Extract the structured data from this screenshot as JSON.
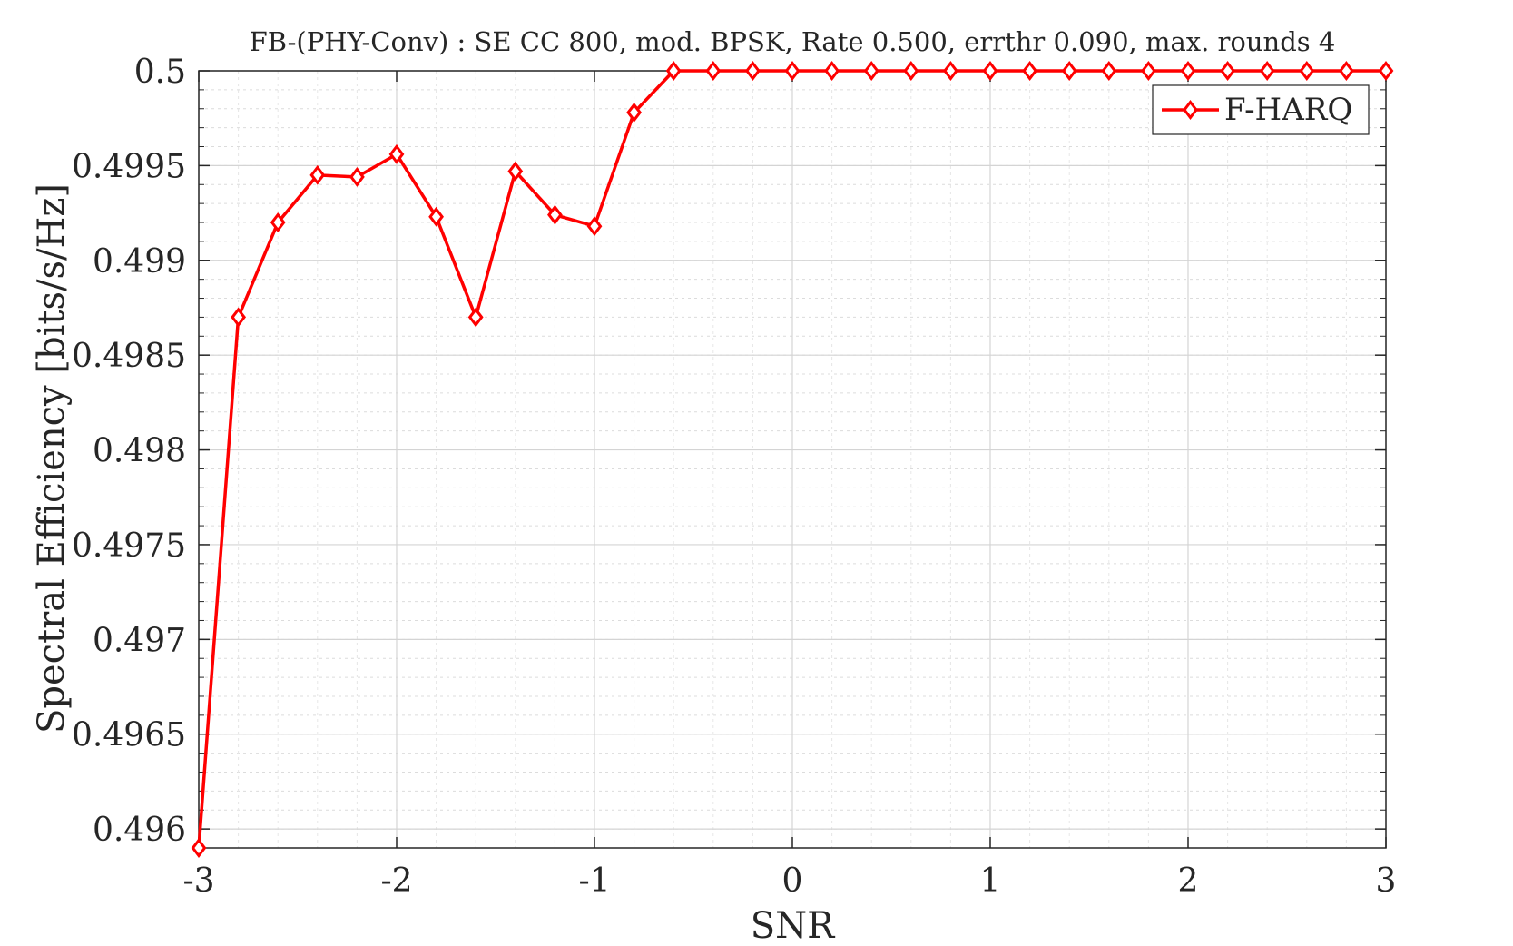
{
  "chart_data": {
    "type": "line",
    "title": "FB-(PHY-Conv) : SE CC 800, mod. BPSK, Rate 0.500, errthr 0.090, max. rounds 4",
    "xlabel": "SNR",
    "ylabel": "Spectral Efficiency [bits/s/Hz]",
    "xlim": [
      -3,
      3
    ],
    "ylim": [
      0.4959,
      0.5
    ],
    "x_ticks": [
      -3,
      -2,
      -1,
      0,
      1,
      2,
      3
    ],
    "x_tick_labels": [
      "-3",
      "-2",
      "-1",
      "0",
      "1",
      "2",
      "3"
    ],
    "y_ticks": [
      0.496,
      0.4965,
      0.497,
      0.4975,
      0.498,
      0.4985,
      0.499,
      0.4995,
      0.5
    ],
    "y_tick_labels": [
      "0.496",
      "0.4965",
      "0.497",
      "0.4975",
      "0.498",
      "0.4985",
      "0.499",
      "0.4995",
      "0.5"
    ],
    "grid": true,
    "minor_grid": true,
    "legend_position": "top-right",
    "series": [
      {
        "name": "F-HARQ",
        "color": "#ff0000",
        "marker": "diamond",
        "x": [
          -3,
          -2.8,
          -2.6,
          -2.4,
          -2.2,
          -2,
          -1.8,
          -1.6,
          -1.4,
          -1.2,
          -1,
          -0.8,
          -0.6,
          -0.4,
          -0.2,
          0,
          0.2,
          0.4,
          0.6,
          0.8,
          1,
          1.2,
          1.4,
          1.6,
          1.8,
          2,
          2.2,
          2.4,
          2.6,
          2.8,
          3
        ],
        "y": [
          0.4959,
          0.4987,
          0.4992,
          0.49945,
          0.49944,
          0.49956,
          0.49923,
          0.4987,
          0.49947,
          0.49924,
          0.49918,
          0.49978,
          0.5,
          0.5,
          0.5,
          0.5,
          0.5,
          0.5,
          0.5,
          0.5,
          0.5,
          0.5,
          0.5,
          0.5,
          0.5,
          0.5,
          0.5,
          0.5,
          0.5,
          0.5,
          0.5
        ]
      }
    ]
  }
}
